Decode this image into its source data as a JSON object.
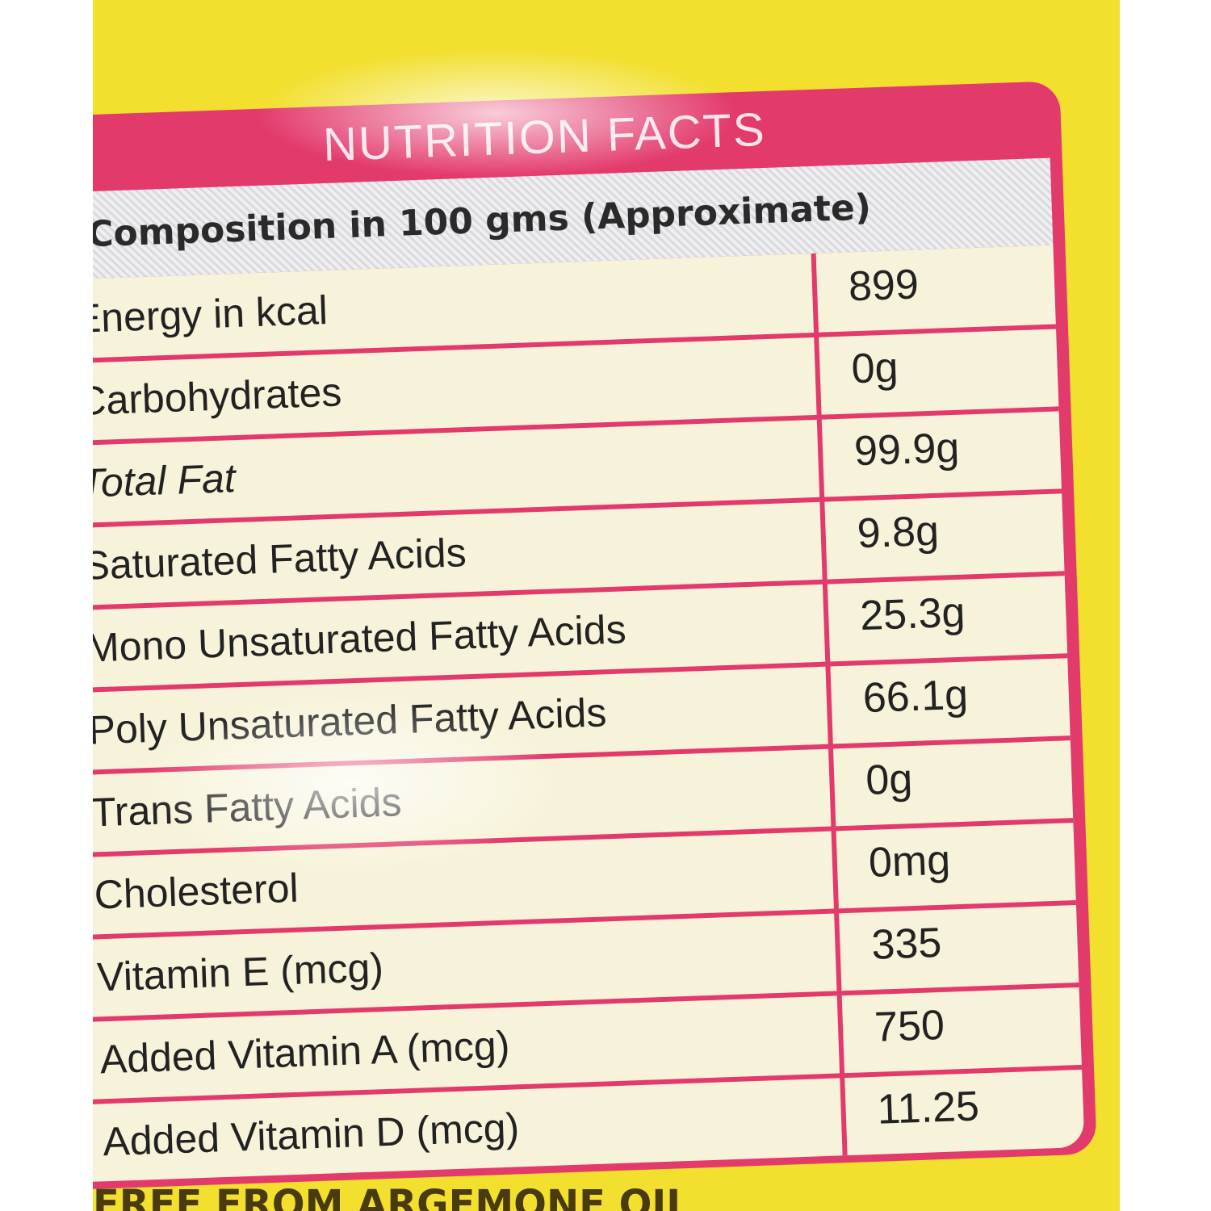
{
  "label": {
    "title": "NUTRITION FACTS",
    "subtitle": "Composition in 100 gms (Approximate)",
    "rows": [
      {
        "label": "Energy in kcal",
        "value": "899"
      },
      {
        "label": "Carbohydrates",
        "value": "0g"
      },
      {
        "label": "Total Fat",
        "value": "99.9g"
      },
      {
        "label": "Saturated Fatty Acids",
        "value": "9.8g"
      },
      {
        "label": "Mono Unsaturated Fatty Acids",
        "value": "25.3g"
      },
      {
        "label": "Poly Unsaturated Fatty Acids",
        "value": "66.1g"
      },
      {
        "label": "Trans Fatty Acids",
        "value": "0g"
      },
      {
        "label": "Cholesterol",
        "value": "0mg"
      },
      {
        "label": "Vitamin E (mcg)",
        "value": "335"
      },
      {
        "label": "Added Vitamin A (mcg)",
        "value": "750"
      },
      {
        "label": "Added Vitamin D (mcg)",
        "value": "11.25"
      }
    ],
    "footer": "FREE FROM ARGEMONE OIL"
  },
  "colors": {
    "panel": "#e33a6c",
    "table_background": "#f7f3da",
    "package": "#f2df2e"
  }
}
